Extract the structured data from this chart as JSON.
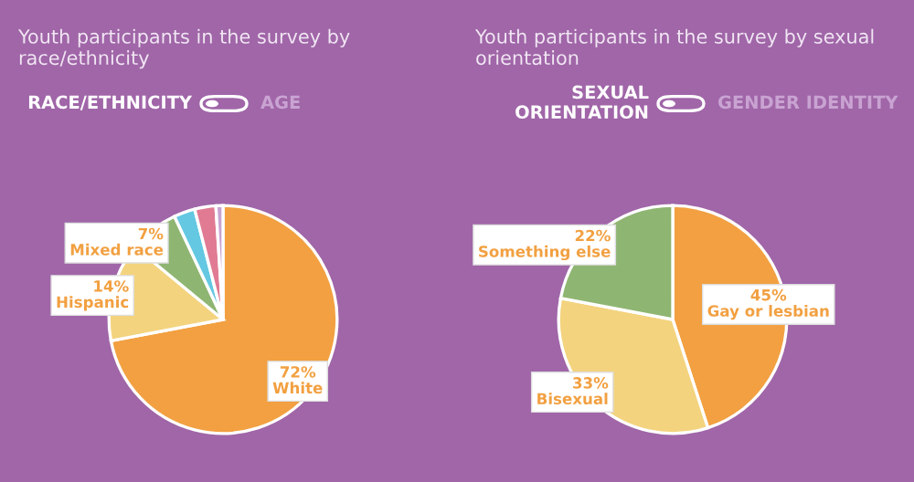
{
  "chart_data": [
    {
      "type": "pie",
      "title": "Youth participants in the survey by race/ethnicity",
      "categories": [
        "White",
        "Hispanic",
        "Mixed race",
        null,
        null,
        null
      ],
      "values": [
        72,
        14,
        7,
        3,
        3,
        1
      ],
      "colors": [
        "#f2a041",
        "#f3d37e",
        "#8fb572",
        "#64c8e2",
        "#e07b93",
        "#c9a3d2"
      ],
      "value_labels": [
        "72%",
        "14%",
        "7%",
        null,
        null,
        null
      ],
      "annotations": [
        "RACE/ETHNICITY",
        "AGE"
      ]
    },
    {
      "type": "pie",
      "title": "Youth participants in the survey by sexual orientation",
      "categories": [
        "Gay or lesbian",
        "Bisexual",
        "Something else"
      ],
      "values": [
        45,
        33,
        22
      ],
      "colors": [
        "#f2a041",
        "#f3d37e",
        "#8fb572"
      ],
      "value_labels": [
        "45%",
        "33%",
        "22%"
      ],
      "annotations": [
        "SEXUAL\nORIENTATION",
        "GENDER IDENTITY"
      ]
    }
  ]
}
